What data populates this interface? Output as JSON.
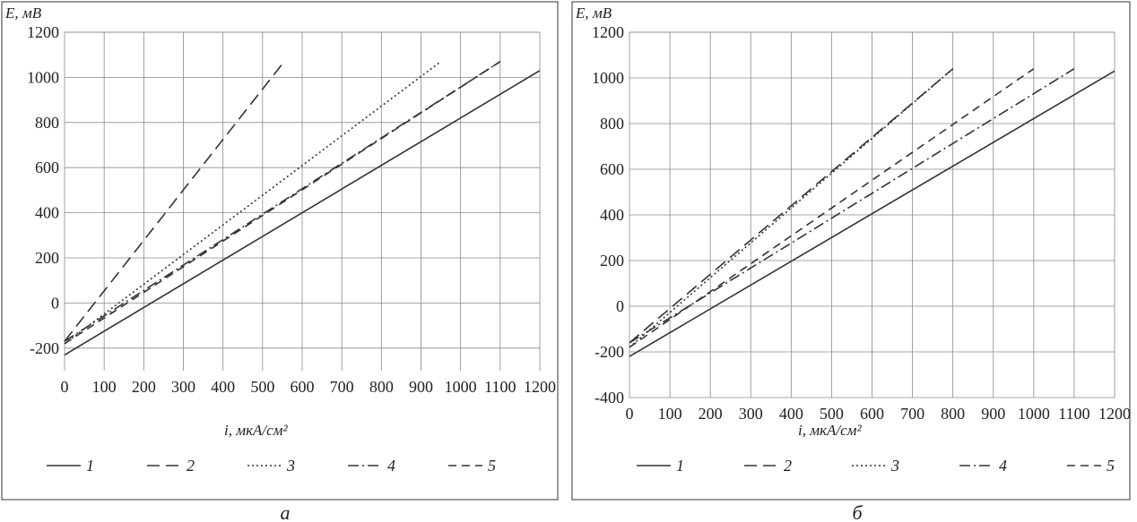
{
  "chart_data": [
    {
      "panel_label": "а",
      "type": "line",
      "ylabel": "E, мВ",
      "xlabel": "i, мкА/см²",
      "xlim": [
        0,
        1200
      ],
      "ylim": [
        -300,
        1200
      ],
      "x_ticks": [
        0,
        100,
        200,
        300,
        400,
        500,
        600,
        700,
        800,
        900,
        1000,
        1100,
        1200
      ],
      "y_ticks": [
        -200,
        0,
        200,
        400,
        600,
        800,
        1000,
        1200
      ],
      "grid": true,
      "legend_position": "bottom",
      "series": [
        {
          "name": "1",
          "dash": "solid",
          "x": [
            0,
            1200
          ],
          "y": [
            -230,
            1030
          ]
        },
        {
          "name": "2",
          "dash": "dash",
          "x": [
            0,
            550
          ],
          "y": [
            -170,
            1060
          ]
        },
        {
          "name": "3",
          "dash": "dot",
          "x": [
            0,
            950
          ],
          "y": [
            -180,
            1070
          ]
        },
        {
          "name": "4",
          "dash": "dashdot",
          "x": [
            0,
            1100
          ],
          "y": [
            -170,
            1070
          ]
        },
        {
          "name": "5",
          "dash": "longdash",
          "x": [
            0,
            1100
          ],
          "y": [
            -180,
            1070
          ]
        }
      ]
    },
    {
      "panel_label": "б",
      "type": "line",
      "ylabel": "E, мВ",
      "xlabel": "i, мкА/см²",
      "xlim": [
        0,
        1200
      ],
      "ylim": [
        -400,
        1200
      ],
      "x_ticks": [
        0,
        100,
        200,
        300,
        400,
        500,
        600,
        700,
        800,
        900,
        1000,
        1100,
        1200
      ],
      "y_ticks": [
        -400,
        -200,
        0,
        200,
        400,
        600,
        800,
        1000,
        1200
      ],
      "grid": true,
      "legend_position": "bottom",
      "series": [
        {
          "name": "1",
          "dash": "solid",
          "x": [
            0,
            1200
          ],
          "y": [
            -220,
            1030
          ]
        },
        {
          "name": "2",
          "dash": "dash",
          "x": [
            0,
            800
          ],
          "y": [
            -160,
            1040
          ]
        },
        {
          "name": "3",
          "dash": "dot",
          "x": [
            0,
            800
          ],
          "y": [
            -180,
            1040
          ]
        },
        {
          "name": "4",
          "dash": "dashdot",
          "x": [
            0,
            1100
          ],
          "y": [
            -160,
            1040
          ]
        },
        {
          "name": "5",
          "dash": "longdash",
          "x": [
            0,
            1000
          ],
          "y": [
            -180,
            1040
          ]
        }
      ]
    }
  ]
}
